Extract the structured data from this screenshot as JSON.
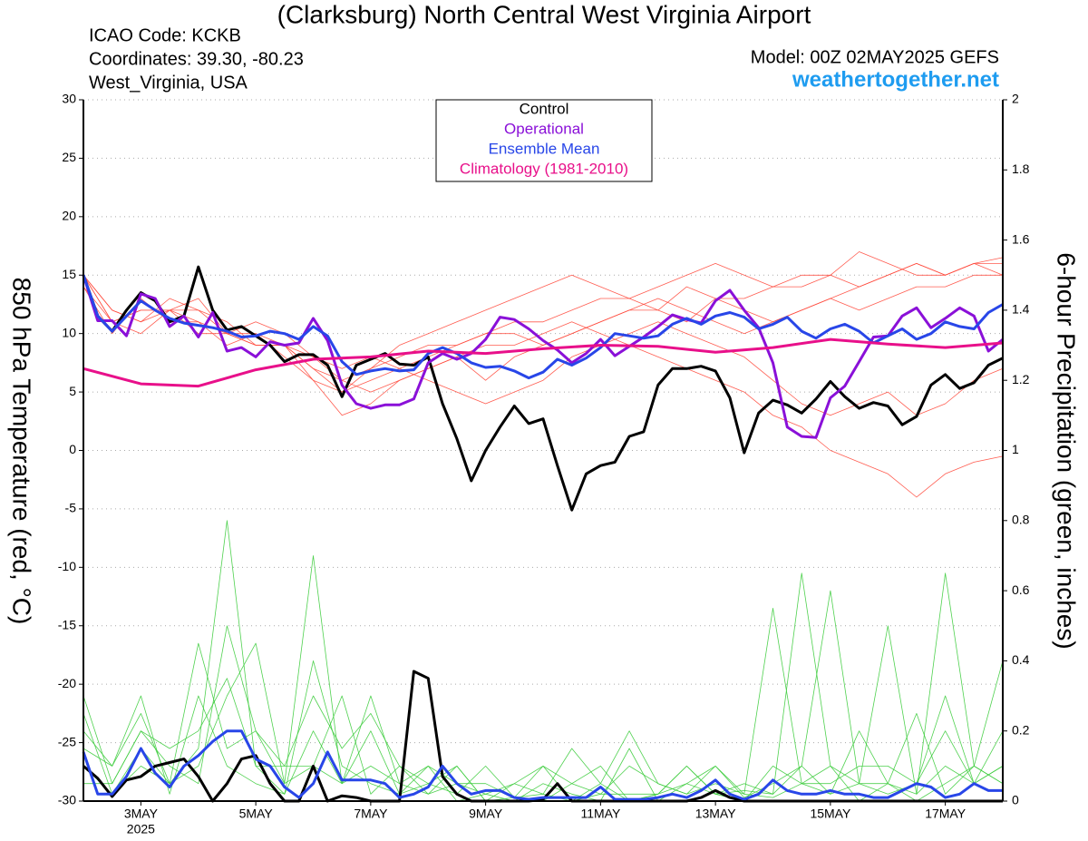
{
  "chart_data": {
    "type": "line",
    "title": "(Clarksburg) North Central West Virginia Airport",
    "info_left": [
      "ICAO Code: KCKB",
      "Coordinates: 39.30, -80.23",
      "West_Virginia, USA"
    ],
    "model": "Model: 00Z 02MAY2025 GEFS",
    "source": "weathertogether.net",
    "ylabel": "850 hPa Temperature (red, °C)",
    "y2label": "6-hour Precipitation (green, inches)",
    "xlim": [
      0,
      384
    ],
    "xticks": [
      {
        "value": 24,
        "label": "3MAY"
      },
      {
        "value": 72,
        "label": "5MAY"
      },
      {
        "value": 120,
        "label": "7MAY"
      },
      {
        "value": 168,
        "label": "9MAY"
      },
      {
        "value": 216,
        "label": "11MAY"
      },
      {
        "value": 264,
        "label": "13MAY"
      },
      {
        "value": 312,
        "label": "15MAY"
      },
      {
        "value": 360,
        "label": "17MAY"
      }
    ],
    "year_label": "2025",
    "ylim": [
      -30,
      30
    ],
    "yticks": [
      30,
      25,
      20,
      15,
      10,
      5,
      0,
      -5,
      -10,
      -15,
      -20,
      -25,
      -30
    ],
    "y2lim": [
      0,
      2
    ],
    "y2ticks": [
      0,
      0.2,
      0.4,
      0.6,
      0.8,
      1,
      1.2,
      1.4,
      1.6,
      1.8,
      2
    ],
    "grid": true,
    "x": [
      0,
      6,
      12,
      18,
      24,
      30,
      36,
      42,
      48,
      54,
      60,
      66,
      72,
      78,
      84,
      90,
      96,
      102,
      108,
      114,
      120,
      126,
      132,
      138,
      144,
      150,
      156,
      162,
      168,
      174,
      180,
      186,
      192,
      198,
      204,
      210,
      216,
      222,
      228,
      234,
      240,
      246,
      252,
      258,
      264,
      270,
      276,
      282,
      288,
      294,
      300,
      306,
      312,
      318,
      324,
      330,
      336,
      342,
      348,
      354,
      360,
      366,
      372,
      378,
      384
    ],
    "ensemble": {
      "x": [
        0,
        12,
        24,
        36,
        48,
        60,
        72,
        84,
        96,
        108,
        120,
        132,
        144,
        156,
        168,
        180,
        192,
        204,
        216,
        228,
        240,
        252,
        264,
        276,
        288,
        300,
        312,
        324,
        336,
        348,
        360,
        372,
        384
      ],
      "color": "#ff4a3d",
      "precip_color": "#3ccc3c",
      "temperature": [
        [
          15,
          11,
          12,
          12,
          10,
          10,
          9,
          9,
          7,
          5,
          7,
          8,
          9,
          9,
          10,
          11,
          11,
          12,
          13,
          13,
          12,
          14,
          13,
          13,
          14,
          14,
          15,
          14,
          15,
          16,
          15,
          16,
          16
        ],
        [
          14,
          10,
          13,
          11,
          11,
          9,
          10,
          8,
          6,
          3,
          4,
          6,
          7,
          8,
          6,
          8,
          9,
          10,
          11,
          12,
          12,
          11,
          13,
          12,
          11,
          12,
          13,
          12,
          13,
          14,
          14,
          15,
          15
        ],
        [
          15,
          12,
          11,
          13,
          12,
          10,
          9,
          9,
          8,
          7,
          8,
          7,
          6,
          5,
          4,
          5,
          6,
          8,
          9,
          10,
          11,
          10,
          9,
          8,
          6,
          4,
          3,
          4,
          5,
          3,
          4,
          6,
          7
        ],
        [
          15,
          11,
          12,
          12,
          11,
          10,
          10,
          9,
          7,
          6,
          5,
          6,
          7,
          8,
          9,
          9,
          10,
          11,
          10,
          9,
          8,
          7,
          6,
          5,
          3,
          2,
          0,
          -1,
          -2,
          -4,
          -2,
          -1,
          -0.5
        ],
        [
          14,
          11,
          10,
          12,
          12,
          11,
          9,
          9,
          6,
          5,
          6,
          7,
          8,
          9,
          10,
          10,
          9,
          10,
          11,
          12,
          13,
          12,
          11,
          10,
          11,
          12,
          13,
          14,
          15,
          16,
          15,
          16,
          16.5
        ],
        [
          15,
          12,
          11,
          12,
          13,
          10,
          11,
          10,
          8,
          6,
          7,
          9,
          10,
          11,
          12,
          13,
          14,
          15,
          14,
          13,
          14,
          15,
          16,
          15,
          14,
          15,
          15,
          17,
          16,
          15,
          15,
          16,
          15
        ]
      ],
      "precipitation": [
        [
          0.3,
          0.05,
          0.2,
          0.1,
          0.05,
          0.5,
          0.2,
          0.1,
          0.1,
          0.05,
          0.2,
          0.02,
          0.05,
          0.1,
          0,
          0.01,
          0,
          0.05,
          0.1,
          0,
          0.02,
          0.1,
          0.02,
          0,
          0.1,
          0.05,
          0.1,
          0,
          0.05,
          0.25,
          0.02,
          0.1,
          0.05
        ],
        [
          0.2,
          0.1,
          0.3,
          0.02,
          0.3,
          0.1,
          0.05,
          0.02,
          0.2,
          0.05,
          0.3,
          0.05,
          0.1,
          0,
          0.02,
          0,
          0.05,
          0.02,
          0,
          0.15,
          0,
          0.05,
          0.1,
          0.02,
          0.01,
          0.05,
          0.02,
          0.2,
          0.05,
          0,
          0.05,
          0.1,
          0.4
        ],
        [
          0.1,
          0.02,
          0.15,
          0.05,
          0.1,
          0.3,
          0.45,
          0.05,
          0.1,
          0.3,
          0.02,
          0.1,
          0.05,
          0.02,
          0.1,
          0.01,
          0.02,
          0,
          0.05,
          0.2,
          0.05,
          0.02,
          0.1,
          0.01,
          0.05,
          0.1,
          0.02,
          0.05,
          0.5,
          0.02,
          0.1,
          0.05,
          0.1
        ],
        [
          0.05,
          0.05,
          0.2,
          0.15,
          0.2,
          0.35,
          0.1,
          0.02,
          0.4,
          0.1,
          0.05,
          0.02,
          0.1,
          0.05,
          0.02,
          0.05,
          0.1,
          0,
          0.02,
          0.02,
          0.02,
          0.1,
          0.02,
          0.05,
          0.02,
          0.65,
          0.1,
          0.05,
          0.02,
          0.05,
          0.3,
          0.05,
          0.1
        ],
        [
          0.25,
          0.02,
          0.1,
          0.05,
          0.45,
          0.15,
          0.2,
          0.05,
          0.7,
          0.05,
          0.1,
          0.05,
          0.02,
          0.1,
          0,
          0.05,
          0.02,
          0.15,
          0.05,
          0,
          0.02,
          0.05,
          0.02,
          0.03,
          0.02,
          0.1,
          0.6,
          0.05,
          0.05,
          0.02,
          0.65,
          0.1,
          0.05
        ],
        [
          0.15,
          0.1,
          0.25,
          0.05,
          0.15,
          0.8,
          0.1,
          0.1,
          0.3,
          0.15,
          0.25,
          0.1,
          0.02,
          0.05,
          0.05,
          0.01,
          0.1,
          0.05,
          0.02,
          0.1,
          0.05,
          0.02,
          0.05,
          0.02,
          0.55,
          0.05,
          0.05,
          0.1,
          0.1,
          0.05,
          0.2,
          0.05,
          0.2
        ]
      ]
    },
    "series": [
      {
        "name": "Control",
        "color": "#000000",
        "values": [
          15,
          11.5,
          10.2,
          12,
          13.5,
          12.8,
          11,
          11.5,
          15.7,
          12,
          10.3,
          10.6,
          9.8,
          9,
          7.6,
          8.2,
          8.2,
          7.3,
          4.6,
          7.3,
          7.8,
          8.3,
          7.4,
          7.3,
          8,
          4,
          1,
          -2.6,
          0,
          2,
          3.8,
          2.3,
          2.7,
          -1.3,
          -5.1,
          -2,
          -1.3,
          -1,
          1.2,
          1.6,
          5.6,
          7,
          7,
          7.2,
          6.8,
          4.5,
          -0.2,
          3.2,
          4.3,
          3.9,
          3.2,
          4.4,
          5.9,
          4.6,
          3.6,
          4.1,
          3.8,
          2.2,
          2.9,
          5.6,
          6.5,
          5.3,
          5.8,
          7.3,
          7.9
        ]
      },
      {
        "name": "Operational",
        "color": "#8a10d8",
        "values": [
          15,
          11.1,
          11.1,
          9.8,
          13.4,
          13,
          10.6,
          11.5,
          9.7,
          11.8,
          8.5,
          8.8,
          8,
          9.3,
          9,
          9.2,
          11.3,
          9.4,
          5.6,
          4,
          3.6,
          3.9,
          3.9,
          4.4,
          7.5,
          8.3,
          7.8,
          8.3,
          9.5,
          11.4,
          11.2,
          10.4,
          9.4,
          8.6,
          7.5,
          8.3,
          9.5,
          8.1,
          8.9,
          9.7,
          10.6,
          11.6,
          11.2,
          10.9,
          12.8,
          13.7,
          12,
          10.5,
          7.5,
          2,
          1.2,
          1.1,
          4.5,
          5.5,
          7.6,
          9.7,
          9.8,
          11.5,
          12.2,
          10.5,
          11.3,
          12.2,
          11.5,
          8.5,
          9.5
        ]
      },
      {
        "name": "Ensemble Mean",
        "color": "#2846e8",
        "values": [
          15,
          11.5,
          10.2,
          11.5,
          12.8,
          12,
          11.3,
          10.9,
          10.7,
          10.5,
          10.2,
          9.7,
          9.8,
          10.2,
          10,
          9.5,
          10.6,
          9.8,
          7.6,
          6.5,
          6.8,
          7,
          6.8,
          6.9,
          8.3,
          8.8,
          8.3,
          7.5,
          7.1,
          7.2,
          6.8,
          6.2,
          6.7,
          7.8,
          7.3,
          7.9,
          8.8,
          10,
          9.8,
          9.6,
          9.8,
          10.8,
          11.3,
          10.8,
          11.5,
          11.8,
          11.4,
          10.4,
          10.8,
          11.4,
          10.2,
          9.6,
          10.4,
          10.8,
          10.2,
          9.2,
          9.8,
          10.4,
          9.5,
          10,
          11,
          10.6,
          10.4,
          11.8,
          12.5
        ]
      },
      {
        "name": "Climatology (1981-2010)",
        "color": "#e8108a",
        "x": [
          0,
          24,
          48,
          72,
          96,
          120,
          144,
          168,
          192,
          216,
          240,
          264,
          288,
          312,
          336,
          360,
          384
        ],
        "values": [
          7,
          5.7,
          5.5,
          6.9,
          7.8,
          8,
          8.5,
          8.3,
          8.7,
          9,
          8.9,
          8.4,
          8.8,
          9.5,
          9.1,
          8.8,
          9.2
        ]
      },
      {
        "color": "#000000",
        "axis": "y2",
        "values": [
          0.1,
          0.065,
          0.013,
          0.06,
          0.07,
          0.1,
          0.11,
          0.12,
          0.07,
          0,
          0.05,
          0.12,
          0.13,
          0.05,
          0,
          0,
          0.1,
          0,
          0.015,
          0.01,
          0,
          0,
          0,
          0.37,
          0.35,
          0.07,
          0.02,
          0,
          0,
          0,
          0,
          0,
          0.005,
          0.05,
          0,
          0,
          0,
          0,
          0,
          0,
          0,
          0,
          0,
          0.01,
          0.03,
          0.01,
          0,
          0,
          0,
          0,
          0,
          0,
          0,
          0,
          0,
          0,
          0,
          0,
          0,
          0,
          0,
          0,
          0,
          0,
          0
        ]
      },
      {
        "color": "#2846e8",
        "axis": "y2",
        "values": [
          0.14,
          0.02,
          0.02,
          0.07,
          0.15,
          0.08,
          0.04,
          0.1,
          0.13,
          0.17,
          0.2,
          0.2,
          0.12,
          0.1,
          0.04,
          0.01,
          0.05,
          0.14,
          0.06,
          0.06,
          0.06,
          0.05,
          0.01,
          0.02,
          0.04,
          0.1,
          0.05,
          0.02,
          0.03,
          0.03,
          0.01,
          0.005,
          0.01,
          0.01,
          0.01,
          0.01,
          0.04,
          0.005,
          0.005,
          0.005,
          0.01,
          0.02,
          0.01,
          0.03,
          0.06,
          0.02,
          0.005,
          0.02,
          0.06,
          0.03,
          0.02,
          0.02,
          0.03,
          0.02,
          0.02,
          0.01,
          0.01,
          0.03,
          0.05,
          0.04,
          0.01,
          0.02,
          0.05,
          0.03,
          0.03
        ]
      }
    ]
  }
}
